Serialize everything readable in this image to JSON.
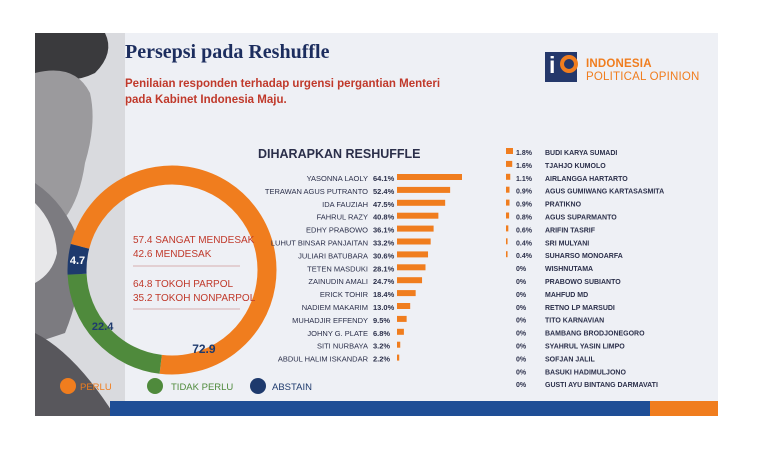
{
  "header": {
    "title": "Persepsi pada Reshuffle",
    "subtitle": "Penilaian responden terhadap urgensi pergantian Menteri pada Kabinet Indonesia Maju."
  },
  "logo": {
    "line1": "INDONESIA",
    "line2": "POLITICAL OPINION"
  },
  "donut_info": {
    "line1": "57.4 SANGAT MENDESAK",
    "line2": "42.6 MENDESAK",
    "line3": "64.8 TOKOH PARPOL",
    "line4": "35.2 TOKOH NONPARPOL"
  },
  "legend": {
    "perlu": "PERLU",
    "tidak_perlu": "TIDAK PERLU",
    "abstain": "ABSTAIN"
  },
  "section_title": "DIHARAPKAN RESHUFFLE",
  "colors": {
    "orange": "#f07d1e",
    "green": "#4f8a3c",
    "navy": "#1e3a6d",
    "title": "#1c2d5e",
    "subtitle": "#c0392b"
  },
  "chart_data": [
    {
      "type": "pie",
      "donut": true,
      "labels": [
        "PERLU",
        "TIDAK PERLU",
        "ABSTAIN"
      ],
      "values": [
        72.9,
        22.4,
        4.7
      ],
      "colors": [
        "#f07d1e",
        "#4f8a3c",
        "#1e3a6d"
      ],
      "data_labels": [
        "72.9",
        "22.4",
        "4.7"
      ]
    },
    {
      "type": "bar",
      "orientation": "horizontal",
      "title": "DIHARAPKAN RESHUFFLE",
      "categories": [
        "YASONNA LAOLY",
        "TERAWAN AGUS PUTRANTO",
        "IDA FAUZIAH",
        "FAHRUL RAZY",
        "EDHY PRABOWO",
        "LUHUT BINSAR PANJAITAN",
        "JULIARI BATUBARA",
        "TETEN MASDUKI",
        "ZAINUDIN AMALI",
        "ERICK TOHIR",
        "NADIEM MAKARIM",
        "MUHADJIR EFFENDY",
        "JOHNY G. PLATE",
        "SITI NURBAYA",
        "ABDUL HALIM ISKANDAR"
      ],
      "values": [
        64.1,
        52.4,
        47.5,
        40.8,
        36.1,
        33.2,
        30.6,
        28.1,
        24.7,
        18.4,
        13.0,
        9.5,
        6.8,
        3.2,
        2.2
      ],
      "value_labels": [
        "64.1%",
        "52.4%",
        "47.5%",
        "40.8%",
        "36.1%",
        "33.2%",
        "30.6%",
        "28.1%",
        "24.7%",
        "18.4%",
        "13.0%",
        "9.5%",
        "6.8%",
        "3.2%",
        "2.2%"
      ]
    },
    {
      "type": "bar",
      "orientation": "horizontal",
      "categories": [
        "BUDI KARYA SUMADI",
        "TJAHJO KUMOLO",
        "AIRLANGGA HARTARTO",
        "AGUS GUMIWANG KARTASASMITA",
        "PRATIKNO",
        "AGUS SUPARMANTO",
        "ARIFIN TASRIF",
        "SRI MULYANI",
        "SUHARSO MONOARFA",
        "WISHNUTAMA",
        "PRABOWO SUBIANTO",
        "MAHFUD MD",
        "RETNO LP MARSUDI",
        "TITO KARNAVIAN",
        "BAMBANG BRODJONEGORO",
        "SYAHRUL YASIN LIMPO",
        "SOFJAN JALIL",
        "BASUKI HADIMULJONO",
        "GUSTI AYU BINTANG DARMAVATI"
      ],
      "values": [
        1.8,
        1.6,
        1.1,
        0.9,
        0.9,
        0.8,
        0.6,
        0.4,
        0.4,
        0,
        0,
        0,
        0,
        0,
        0,
        0,
        0,
        0,
        0
      ],
      "value_labels": [
        "1.8%",
        "1.6%",
        "1.1%",
        "0.9%",
        "0.9%",
        "0.8%",
        "0.6%",
        "0.4%",
        "0.4%",
        "0%",
        "0%",
        "0%",
        "0%",
        "0%",
        "0%",
        "0%",
        "0%",
        "0%",
        "0%"
      ]
    }
  ]
}
